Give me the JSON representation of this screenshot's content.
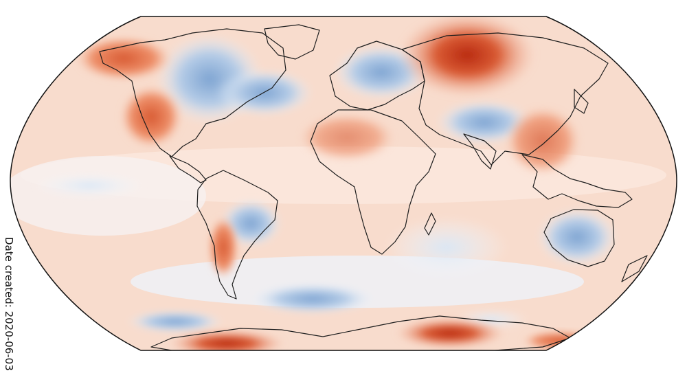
{
  "figure": {
    "date_created": "Date created: 2020-06-03"
  },
  "map": {
    "projection": "robinson",
    "type": "global temperature anomaly map",
    "colors": {
      "background": "#f9ded0",
      "ocean_light": "#fbe7dc",
      "warm": "#ef8a62",
      "warm_strong": "#d7532a",
      "hot": "#b72a0f",
      "neutral": "#f7f2ef",
      "cool": "#c9dbee",
      "cool_strong": "#7fa6d4",
      "coast": "#1f1f1f"
    }
  }
}
